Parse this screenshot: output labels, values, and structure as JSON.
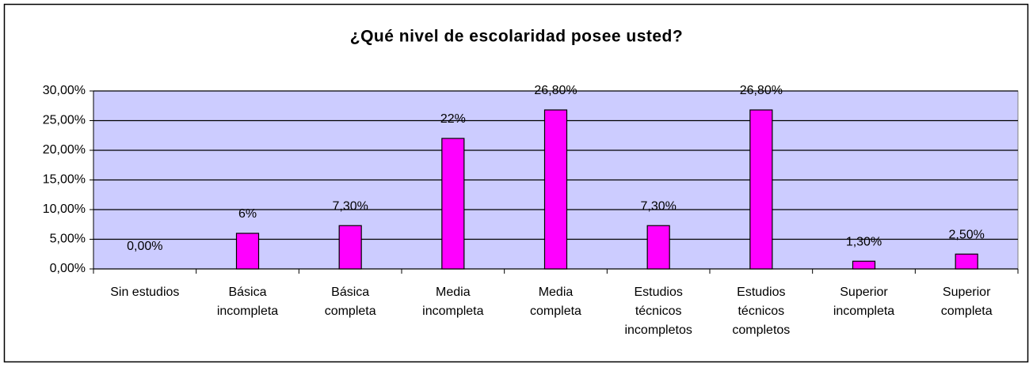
{
  "chart_data": {
    "type": "bar",
    "title": "¿Qué nivel de escolaridad posee usted?",
    "categories": [
      "Sin estudios",
      "Básica incompleta",
      "Básica completa",
      "Media incompleta",
      "Media completa",
      "Estudios técnicos incompletos",
      "Estudios técnicos completos",
      "Superior incompleta",
      "Superior completa"
    ],
    "values": [
      0,
      6,
      7.3,
      22,
      26.8,
      7.3,
      26.8,
      1.3,
      2.5
    ],
    "value_labels": [
      "0,00%",
      "6%",
      "7,30%",
      "22%",
      "26,80%",
      "7,30%",
      "26,80%",
      "1,30%",
      "2,50%"
    ],
    "color": "#ff00ff",
    "ylim": [
      0,
      30
    ],
    "yticks": [
      {
        "value": 0,
        "label": "0,00%"
      },
      {
        "value": 5,
        "label": "5,00%"
      },
      {
        "value": 10,
        "label": "10,00%"
      },
      {
        "value": 15,
        "label": "15,00%"
      },
      {
        "value": 20,
        "label": "20,00%"
      },
      {
        "value": 25,
        "label": "25,00%"
      },
      {
        "value": 30,
        "label": "30,00%"
      }
    ],
    "grid": true
  }
}
